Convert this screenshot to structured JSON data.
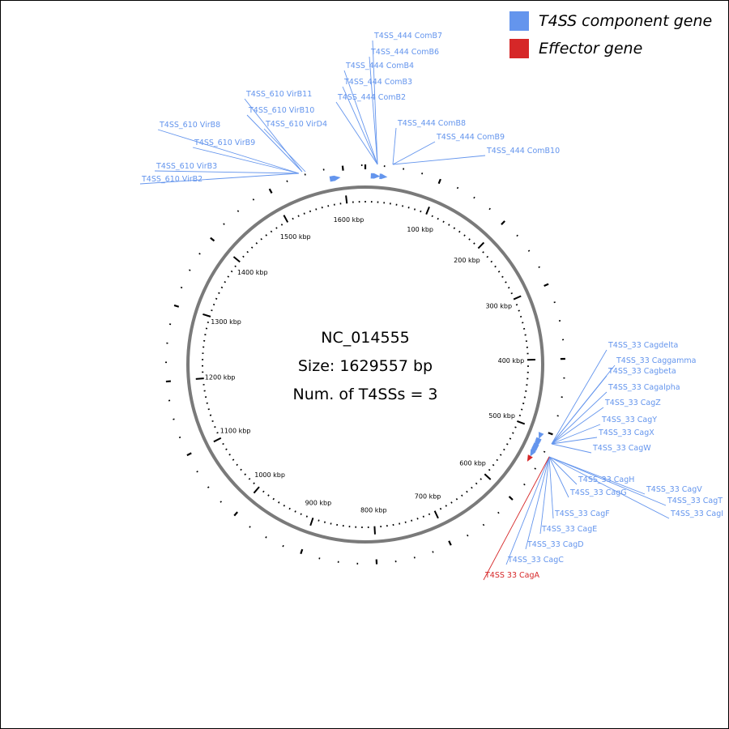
{
  "legend": [
    {
      "label": "T4SS component gene",
      "color": "#6495ed"
    },
    {
      "label": "Effector gene",
      "color": "#d62728"
    }
  ],
  "center": {
    "accession": "NC_014555",
    "size_label": "Size: 1629557 bp",
    "t4ss_count_label": "Num. of T4SSs = 3"
  },
  "chart_data": {
    "type": "circular-genome-map",
    "genome_size_bp": 1629557,
    "tick_labels": [
      {
        "kbp": 100,
        "label": "100 kbp"
      },
      {
        "kbp": 200,
        "label": "200 kbp"
      },
      {
        "kbp": 300,
        "label": "300 kbp"
      },
      {
        "kbp": 400,
        "label": "400 kbp"
      },
      {
        "kbp": 500,
        "label": "500 kbp"
      },
      {
        "kbp": 600,
        "label": "600 kbp"
      },
      {
        "kbp": 700,
        "label": "700 kbp"
      },
      {
        "kbp": 800,
        "label": "800 kbp"
      },
      {
        "kbp": 900,
        "label": "900 kbp"
      },
      {
        "kbp": 1000,
        "label": "1000 kbp"
      },
      {
        "kbp": 1100,
        "label": "1100 kbp"
      },
      {
        "kbp": 1200,
        "label": "1200 kbp"
      },
      {
        "kbp": 1300,
        "label": "1300 kbp"
      },
      {
        "kbp": 1400,
        "label": "1400 kbp"
      },
      {
        "kbp": 1500,
        "label": "1500 kbp"
      },
      {
        "kbp": 1600,
        "label": "1600 kbp"
      }
    ],
    "genes": [
      {
        "name": "T4SS_610 VirB2",
        "kbp": 1585,
        "type": "component"
      },
      {
        "name": "T4SS_610 VirB3",
        "kbp": 1586,
        "type": "component"
      },
      {
        "name": "T4SS_610 VirB8",
        "kbp": 1587,
        "type": "component"
      },
      {
        "name": "T4SS_610 VirB9",
        "kbp": 1588,
        "type": "component"
      },
      {
        "name": "T4SS_610 VirB11",
        "kbp": 1589,
        "type": "component"
      },
      {
        "name": "T4SS_610 VirB10",
        "kbp": 1590,
        "type": "component"
      },
      {
        "name": "T4SS_610 VirD4",
        "kbp": 1591,
        "type": "component"
      },
      {
        "name": "T4SS_444 ComB7",
        "kbp": 12,
        "type": "component"
      },
      {
        "name": "T4SS_444 ComB6",
        "kbp": 13,
        "type": "component"
      },
      {
        "name": "T4SS_444 ComB4",
        "kbp": 14,
        "type": "component"
      },
      {
        "name": "T4SS_444 ComB3",
        "kbp": 15,
        "type": "component"
      },
      {
        "name": "T4SS_444 ComB2",
        "kbp": 16,
        "type": "component"
      },
      {
        "name": "T4SS_444 ComB8",
        "kbp": 24,
        "type": "component"
      },
      {
        "name": "T4SS_444 ComB9",
        "kbp": 25,
        "type": "component"
      },
      {
        "name": "T4SS_444 ComB10",
        "kbp": 26,
        "type": "component"
      },
      {
        "name": "T4SS_33 Cagdelta",
        "kbp": 508,
        "type": "component"
      },
      {
        "name": "T4SS_33 Caggamma",
        "kbp": 516,
        "type": "component"
      },
      {
        "name": "T4SS_33 Cagbeta",
        "kbp": 517,
        "type": "component"
      },
      {
        "name": "T4SS_33 Cagalpha",
        "kbp": 518,
        "type": "component"
      },
      {
        "name": "T4SS_33 CagZ",
        "kbp": 519,
        "type": "component"
      },
      {
        "name": "T4SS_33 CagY",
        "kbp": 521,
        "type": "component"
      },
      {
        "name": "T4SS_33 CagX",
        "kbp": 524,
        "type": "component"
      },
      {
        "name": "T4SS_33 CagW",
        "kbp": 525,
        "type": "component"
      },
      {
        "name": "T4SS_33 CagV",
        "kbp": 526,
        "type": "component"
      },
      {
        "name": "T4SS_33 CagT",
        "kbp": 527,
        "type": "component"
      },
      {
        "name": "T4SS_33 CagI",
        "kbp": 528,
        "type": "component"
      },
      {
        "name": "T4SS_33 CagH",
        "kbp": 529,
        "type": "component"
      },
      {
        "name": "T4SS_33 CagG",
        "kbp": 530,
        "type": "component"
      },
      {
        "name": "T4SS_33 CagF",
        "kbp": 531,
        "type": "component"
      },
      {
        "name": "T4SS_33 CagE",
        "kbp": 532,
        "type": "component"
      },
      {
        "name": "T4SS_33 CagD",
        "kbp": 534,
        "type": "component"
      },
      {
        "name": "T4SS_33 CagC",
        "kbp": 535,
        "type": "component"
      },
      {
        "name": "T4SS 33 CagA",
        "kbp": 543,
        "type": "effector"
      }
    ]
  }
}
